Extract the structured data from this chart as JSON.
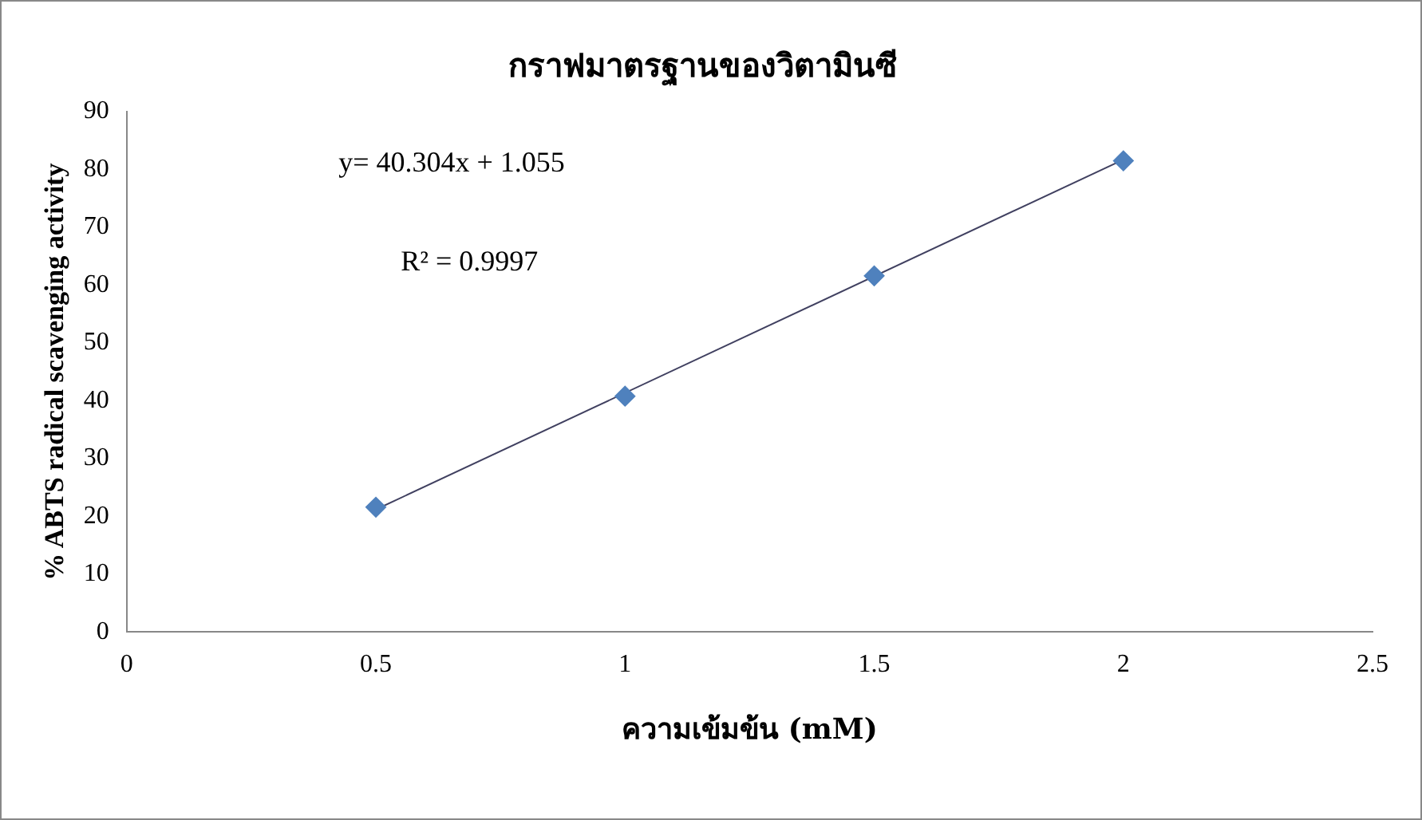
{
  "chart_data": {
    "type": "scatter",
    "title": "กราฟมาตรฐานของวิตามินซี",
    "xlabel": "ความเข้มข้น (mM)",
    "ylabel": "% ABTS radical scavenging activity",
    "annotations": [
      "y= 40.304x + 1.055",
      "R² = 0.9997"
    ],
    "x": [
      0.5,
      1,
      1.5,
      2
    ],
    "series": [
      {
        "color": "#4f81bd",
        "values": [
          21.6,
          40.8,
          61.6,
          81.5
        ],
        "marker": "diamond"
      },
      {
        "type": "line",
        "color": "#404060",
        "x": [
          0.5,
          2
        ],
        "values": [
          21.2,
          81.7
        ],
        "marker": "none"
      }
    ],
    "xlim": [
      0,
      2.5
    ],
    "xticks": [
      0,
      0.5,
      1,
      1.5,
      2,
      2.5
    ],
    "ylim": [
      0,
      90
    ],
    "yticks": [
      0,
      10,
      20,
      30,
      40,
      50,
      60,
      70,
      80,
      90
    ],
    "grid": false,
    "legend": false
  }
}
